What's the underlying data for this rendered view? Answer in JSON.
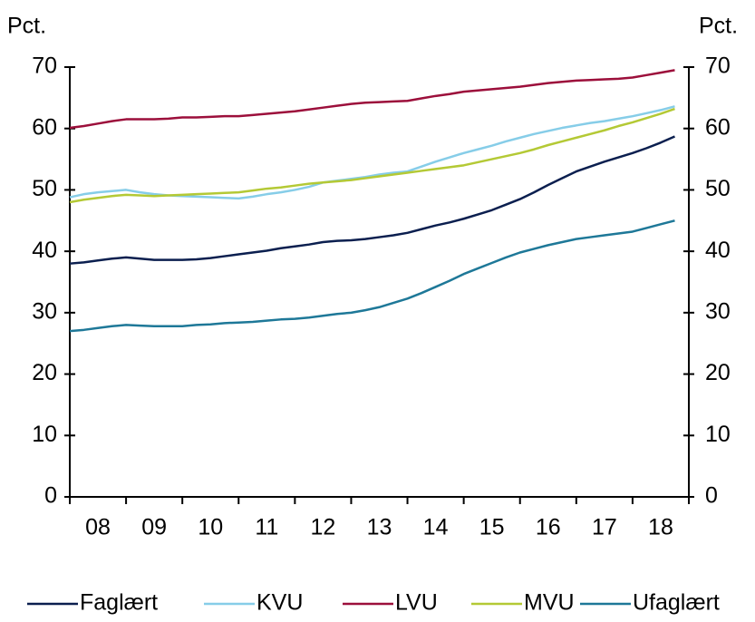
{
  "chart_data": {
    "type": "line",
    "ylabel": "Pct.",
    "y2label": "Pct.",
    "x": [
      2008,
      2008.25,
      2008.5,
      2008.75,
      2009,
      2009.25,
      2009.5,
      2009.75,
      2010,
      2010.25,
      2010.5,
      2010.75,
      2011,
      2011.25,
      2011.5,
      2011.75,
      2012,
      2012.25,
      2012.5,
      2012.75,
      2013,
      2013.25,
      2013.5,
      2013.75,
      2014,
      2014.25,
      2014.5,
      2014.75,
      2015,
      2015.25,
      2015.5,
      2015.75,
      2016,
      2016.25,
      2016.5,
      2016.75,
      2017,
      2017.25,
      2017.5,
      2017.75,
      2018,
      2018.25,
      2018.5,
      2018.75
    ],
    "xlim": [
      2008,
      2019
    ],
    "xticks": [
      {
        "value": 2008.5,
        "label": "08"
      },
      {
        "value": 2009.5,
        "label": "09"
      },
      {
        "value": 2010.5,
        "label": "10"
      },
      {
        "value": 2011.5,
        "label": "11"
      },
      {
        "value": 2012.5,
        "label": "12"
      },
      {
        "value": 2013.5,
        "label": "13"
      },
      {
        "value": 2014.5,
        "label": "14"
      },
      {
        "value": 2015.5,
        "label": "15"
      },
      {
        "value": 2016.5,
        "label": "16"
      },
      {
        "value": 2017.5,
        "label": "17"
      },
      {
        "value": 2018.5,
        "label": "18"
      }
    ],
    "xminorticks": [
      2008,
      2009,
      2010,
      2011,
      2012,
      2013,
      2014,
      2015,
      2016,
      2017,
      2018,
      2019
    ],
    "ylim": [
      0,
      70
    ],
    "yticks": [
      0,
      10,
      20,
      30,
      40,
      50,
      60,
      70
    ],
    "y2lim": [
      0,
      70
    ],
    "y2ticks": [
      0,
      10,
      20,
      30,
      40,
      50,
      60,
      70
    ],
    "grid": false,
    "legend": "bottom",
    "series": [
      {
        "name": "Faglært",
        "color": "#0b1f4f",
        "values": [
          38,
          38.2,
          38.5,
          38.8,
          39,
          38.8,
          38.6,
          38.6,
          38.6,
          38.7,
          38.9,
          39.2,
          39.5,
          39.8,
          40.1,
          40.5,
          40.8,
          41.1,
          41.5,
          41.7,
          41.8,
          42,
          42.3,
          42.6,
          43,
          43.6,
          44.2,
          44.7,
          45.3,
          46,
          46.7,
          47.6,
          48.5,
          49.6,
          50.8,
          51.9,
          53,
          53.8,
          54.6,
          55.3,
          56,
          56.8,
          57.7,
          58.7
        ]
      },
      {
        "name": "KVU",
        "color": "#86cde8",
        "values": [
          48.8,
          49.3,
          49.6,
          49.8,
          50,
          49.6,
          49.3,
          49.1,
          49,
          48.9,
          48.8,
          48.7,
          48.6,
          48.9,
          49.3,
          49.6,
          50,
          50.5,
          51.2,
          51.5,
          51.8,
          52.1,
          52.5,
          52.8,
          53,
          53.8,
          54.6,
          55.3,
          56,
          56.6,
          57.2,
          57.9,
          58.5,
          59.1,
          59.6,
          60.1,
          60.5,
          60.9,
          61.2,
          61.6,
          62,
          62.5,
          63,
          63.6
        ]
      },
      {
        "name": "LVU",
        "color": "#9c0f3b",
        "values": [
          60.1,
          60.4,
          60.8,
          61.2,
          61.5,
          61.5,
          61.5,
          61.6,
          61.8,
          61.8,
          61.9,
          62,
          62,
          62.2,
          62.4,
          62.6,
          62.8,
          63.1,
          63.4,
          63.7,
          64,
          64.2,
          64.3,
          64.4,
          64.5,
          64.9,
          65.3,
          65.6,
          66,
          66.2,
          66.4,
          66.6,
          66.8,
          67.1,
          67.4,
          67.6,
          67.8,
          67.9,
          68,
          68.1,
          68.3,
          68.7,
          69.1,
          69.5
        ]
      },
      {
        "name": "MVU",
        "color": "#b4c935",
        "values": [
          48,
          48.4,
          48.7,
          49,
          49.2,
          49.1,
          49,
          49.1,
          49.2,
          49.3,
          49.4,
          49.5,
          49.6,
          49.9,
          50.2,
          50.4,
          50.7,
          51,
          51.2,
          51.4,
          51.6,
          51.9,
          52.2,
          52.5,
          52.8,
          53.1,
          53.4,
          53.7,
          54,
          54.5,
          55,
          55.5,
          56,
          56.6,
          57.3,
          57.9,
          58.5,
          59.1,
          59.7,
          60.4,
          61,
          61.7,
          62.4,
          63.2
        ]
      },
      {
        "name": "Ufaglært",
        "color": "#1e7898",
        "values": [
          27,
          27.2,
          27.5,
          27.8,
          28,
          27.9,
          27.8,
          27.8,
          27.8,
          28,
          28.1,
          28.3,
          28.4,
          28.5,
          28.7,
          28.9,
          29,
          29.2,
          29.5,
          29.8,
          30,
          30.4,
          30.9,
          31.6,
          32.3,
          33.2,
          34.2,
          35.2,
          36.3,
          37.2,
          38.1,
          39,
          39.8,
          40.4,
          41,
          41.5,
          42,
          42.3,
          42.6,
          42.9,
          43.2,
          43.8,
          44.4,
          45
        ]
      }
    ]
  }
}
